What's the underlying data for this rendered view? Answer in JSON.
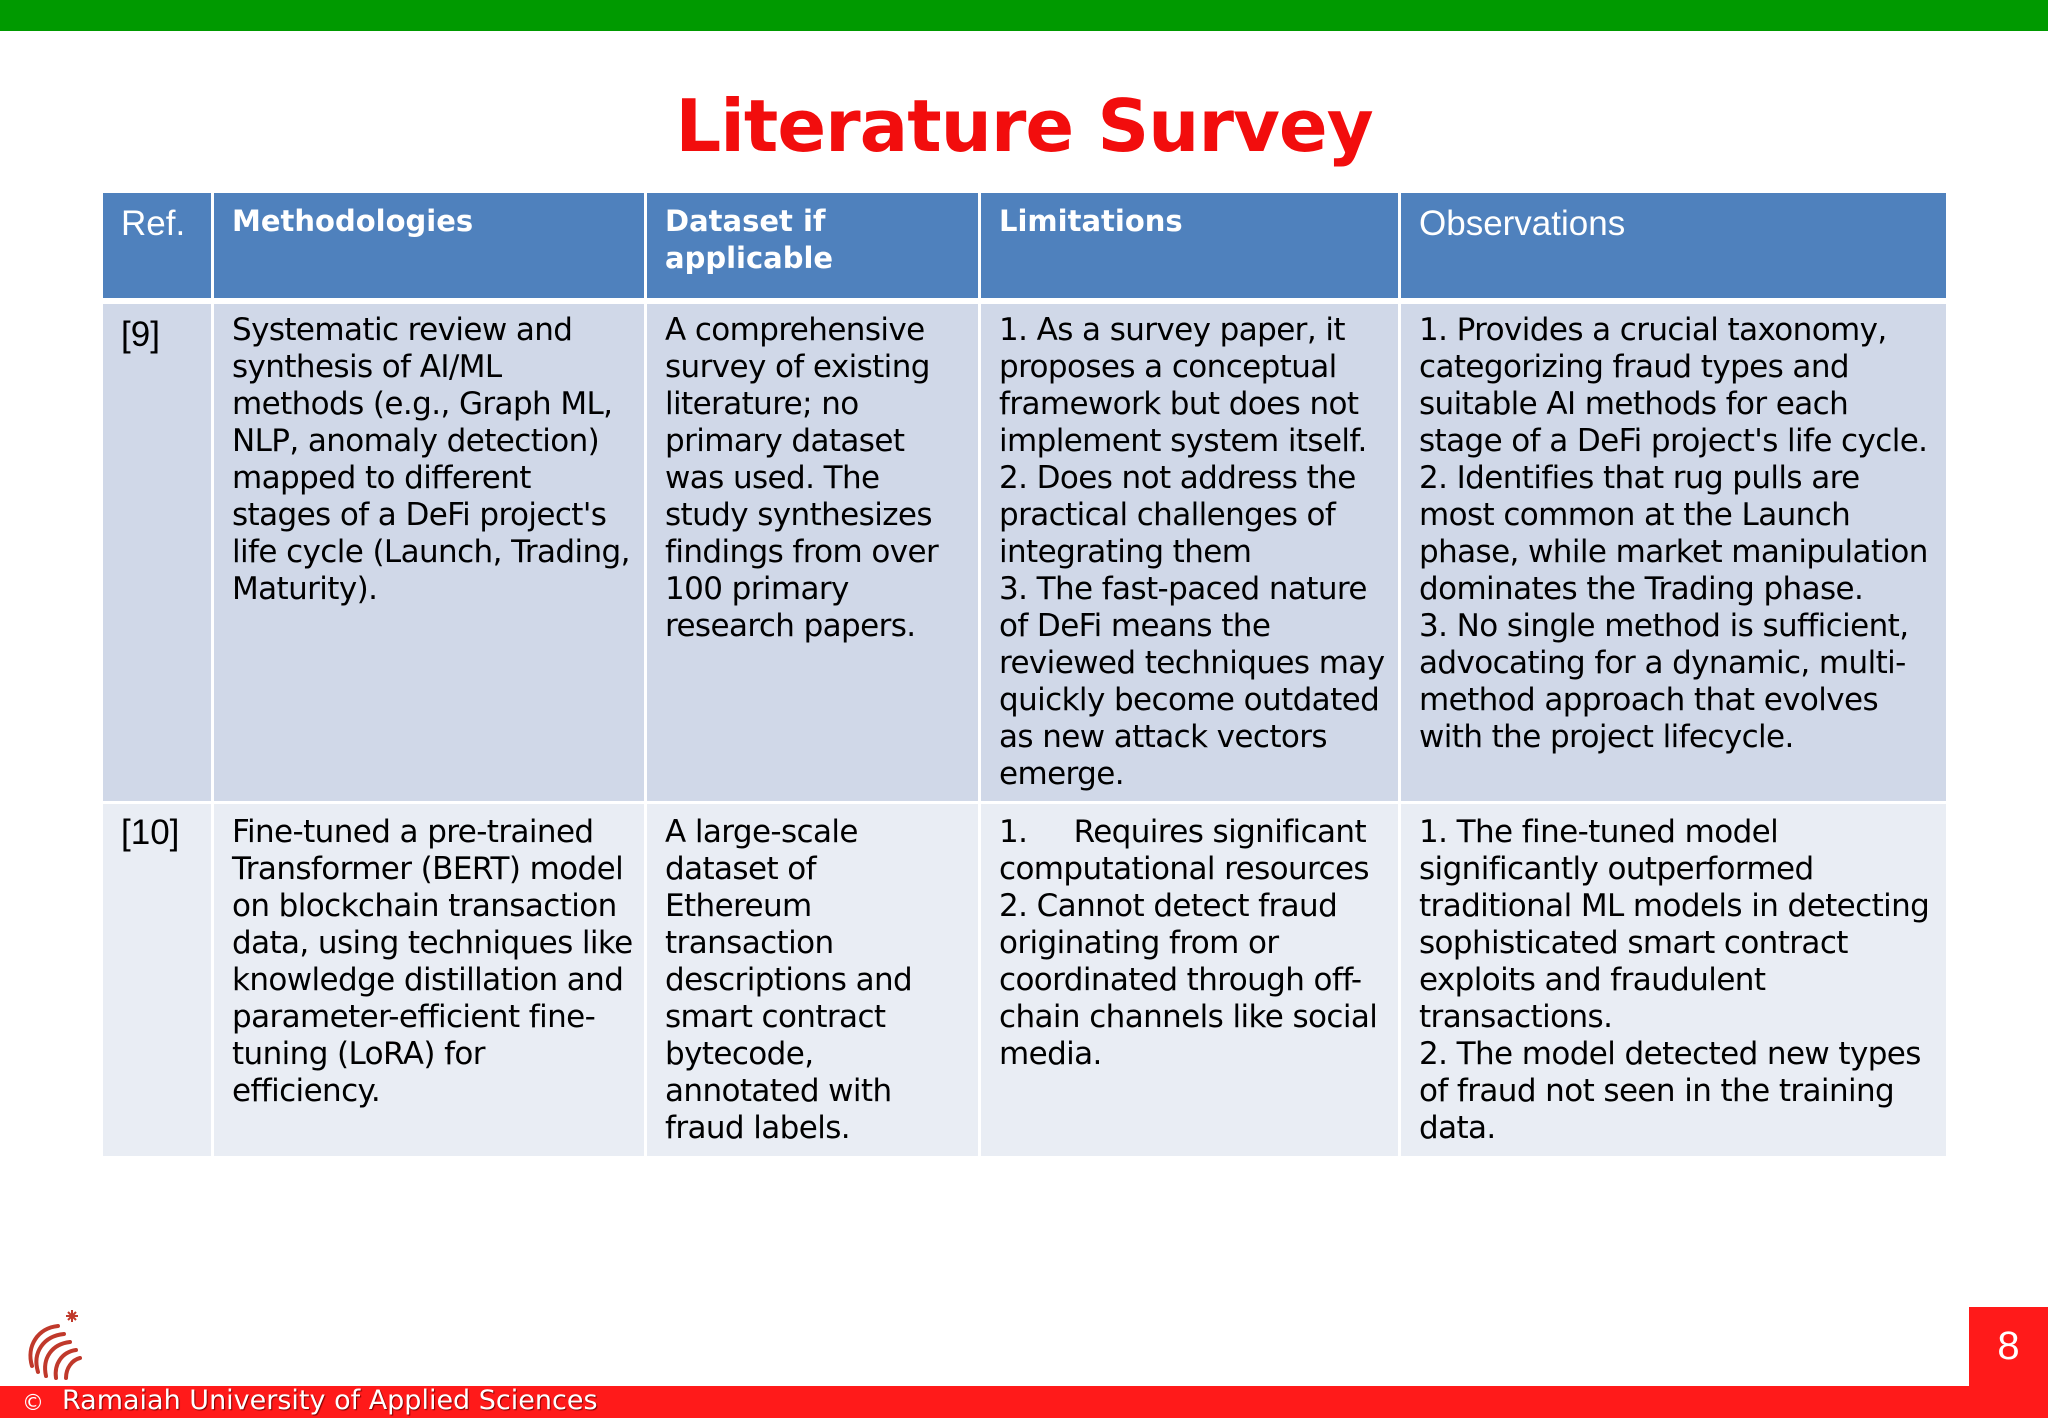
{
  "slide": {
    "title": "Literature Survey",
    "page_number": "8",
    "copyright": "©",
    "university": "Ramaiah University of Applied Sciences"
  },
  "colors": {
    "top_bar": "#009a00",
    "title": "#f20d0d",
    "header": "#4f81bd",
    "row_odd": "#d0d8e8",
    "row_even": "#e9edf4",
    "bottom_bar": "#ff1a1a"
  },
  "icons": {
    "logo": "university-logo-icon"
  },
  "table": {
    "headers": [
      "Ref.",
      "Methodologies",
      "Dataset if applicable",
      "Limitations",
      "Observations"
    ],
    "rows": [
      {
        "ref": "[9]",
        "methodologies": "Systematic review and synthesis of AI/ML methods (e.g., Graph ML, NLP, anomaly detection) mapped to different stages of a DeFi project's life cycle (Launch, Trading, Maturity).",
        "dataset": "A comprehensive survey of existing literature; no primary dataset was used. The study synthesizes findings from over 100 primary research papers.",
        "limitations": [
          "1. As a survey paper, it proposes a conceptual framework but does not implement system itself.",
          "2. Does not address the practical challenges of integrating them",
          "3. The fast-paced nature of DeFi means the reviewed techniques may quickly become outdated as new attack vectors emerge."
        ],
        "observations": [
          "1. Provides a crucial taxonomy, categorizing fraud types and suitable AI methods for each stage of a DeFi project's life cycle.",
          "2. Identifies that rug pulls are most common at the Launch phase, while market manipulation dominates the Trading phase.",
          "3. No single method is sufficient, advocating for a dynamic, multi-method approach that evolves with the project lifecycle."
        ]
      },
      {
        "ref": "[10]",
        "methodologies": "Fine-tuned a pre-trained Transformer (BERT) model on blockchain transaction data, using techniques like knowledge distillation and parameter-efficient fine-tuning (LoRA) for efficiency.",
        "dataset": "A large-scale dataset of Ethereum transaction descriptions and smart contract bytecode, annotated with fraud labels.",
        "limitations": [
          "1.     Requires significant computational resources",
          "2. Cannot detect fraud originating from or coordinated through off-chain channels like social media."
        ],
        "observations": [
          "1. The fine-tuned model significantly outperformed traditional ML models in detecting sophisticated smart contract exploits and fraudulent transactions.",
          "2. The model detected new types of fraud not seen in the training data."
        ]
      }
    ]
  }
}
